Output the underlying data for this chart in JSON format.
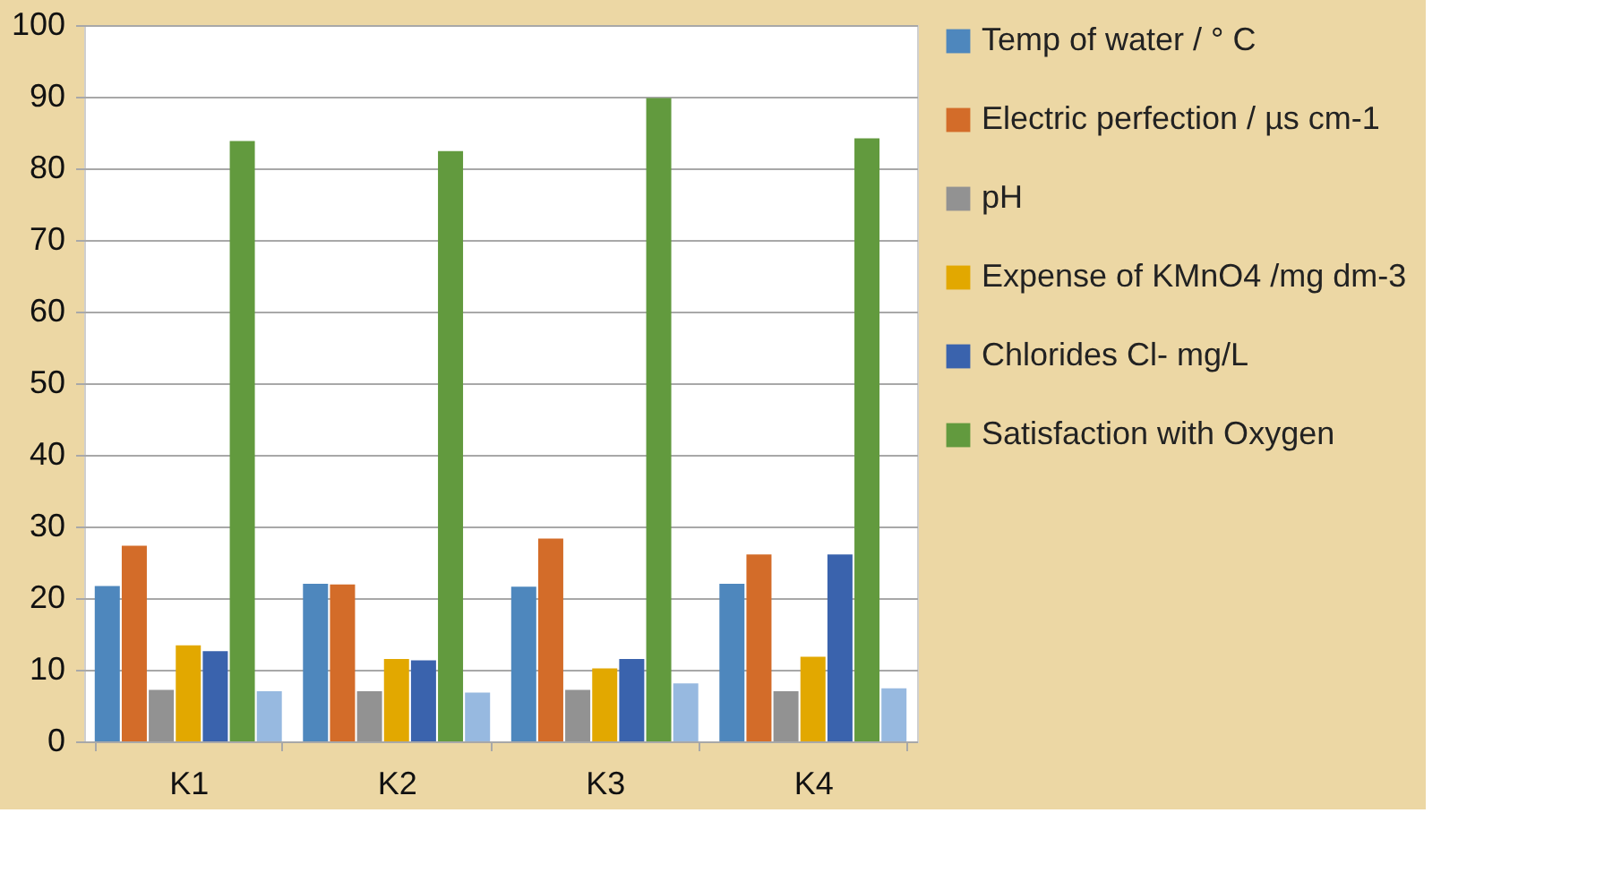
{
  "chart_data": {
    "type": "bar",
    "categories": [
      "K1",
      "K2",
      "K3",
      "K4"
    ],
    "series": [
      {
        "name": "Temp of water / ° C",
        "color": "#4e87bd",
        "values": [
          21.7,
          22.0,
          21.6,
          22.0
        ]
      },
      {
        "name": "Electric perfection  / µs cm-1",
        "color": "#d36c29",
        "values": [
          27.3,
          21.9,
          28.3,
          26.1
        ]
      },
      {
        "name": "pH",
        "color": "#929292",
        "values": [
          7.2,
          7.0,
          7.2,
          7.0
        ]
      },
      {
        "name": "Expense of KMnO4  /mg dm-3",
        "color": "#e2a800",
        "values": [
          13.4,
          11.5,
          10.2,
          11.8
        ]
      },
      {
        "name": "Chlorides Cl- mg/L",
        "color": "#3a63ad",
        "values": [
          12.6,
          11.3,
          11.5,
          26.1
        ]
      },
      {
        "name": "Satisfaction with Oxygen",
        "color": "#629a3e",
        "values": [
          83.8,
          82.4,
          89.8,
          84.2
        ]
      },
      {
        "color": "#97b9e0",
        "values": [
          7.0,
          6.8,
          8.1,
          7.4
        ]
      }
    ],
    "ylim": [
      0,
      100
    ],
    "yticks": [
      0,
      10,
      20,
      30,
      40,
      50,
      60,
      70,
      80,
      90,
      100
    ],
    "grid": "y",
    "legend": "right"
  }
}
